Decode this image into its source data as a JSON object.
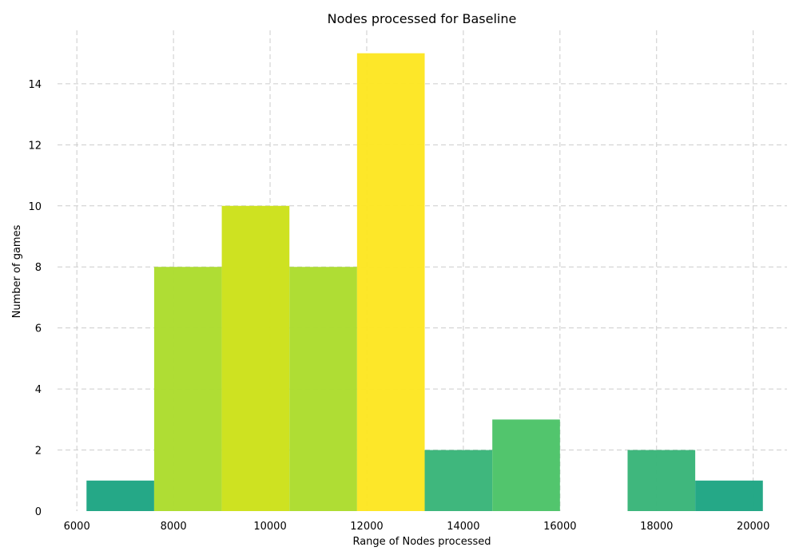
{
  "chart_data": {
    "type": "bar",
    "title": "Nodes processed for Baseline",
    "xlabel": "Range of Nodes processed",
    "ylabel": "Number of games",
    "xlim": [
      5600,
      20700
    ],
    "ylim": [
      0,
      15.75
    ],
    "grid": true,
    "x_ticks": [
      6000,
      8000,
      10000,
      12000,
      14000,
      16000,
      18000,
      20000
    ],
    "y_ticks": [
      0,
      2,
      4,
      6,
      8,
      10,
      12,
      14
    ],
    "bin_width": 1400,
    "bins": [
      {
        "start": 6200,
        "end": 7600,
        "count": 1,
        "color": "#21a685"
      },
      {
        "start": 7600,
        "end": 9000,
        "count": 8,
        "color": "#addc30"
      },
      {
        "start": 9000,
        "end": 10400,
        "count": 10,
        "color": "#cde11d"
      },
      {
        "start": 10400,
        "end": 11800,
        "count": 8,
        "color": "#addc30"
      },
      {
        "start": 11800,
        "end": 13200,
        "count": 15,
        "color": "#fde725"
      },
      {
        "start": 13200,
        "end": 14600,
        "count": 2,
        "color": "#3bb67a"
      },
      {
        "start": 14600,
        "end": 16000,
        "count": 3,
        "color": "#4fc46a"
      },
      {
        "start": 16000,
        "end": 17400,
        "count": 0,
        "color": "#21a685"
      },
      {
        "start": 17400,
        "end": 18800,
        "count": 2,
        "color": "#3bb67a"
      },
      {
        "start": 18800,
        "end": 20200,
        "count": 1,
        "color": "#21a685"
      }
    ]
  }
}
